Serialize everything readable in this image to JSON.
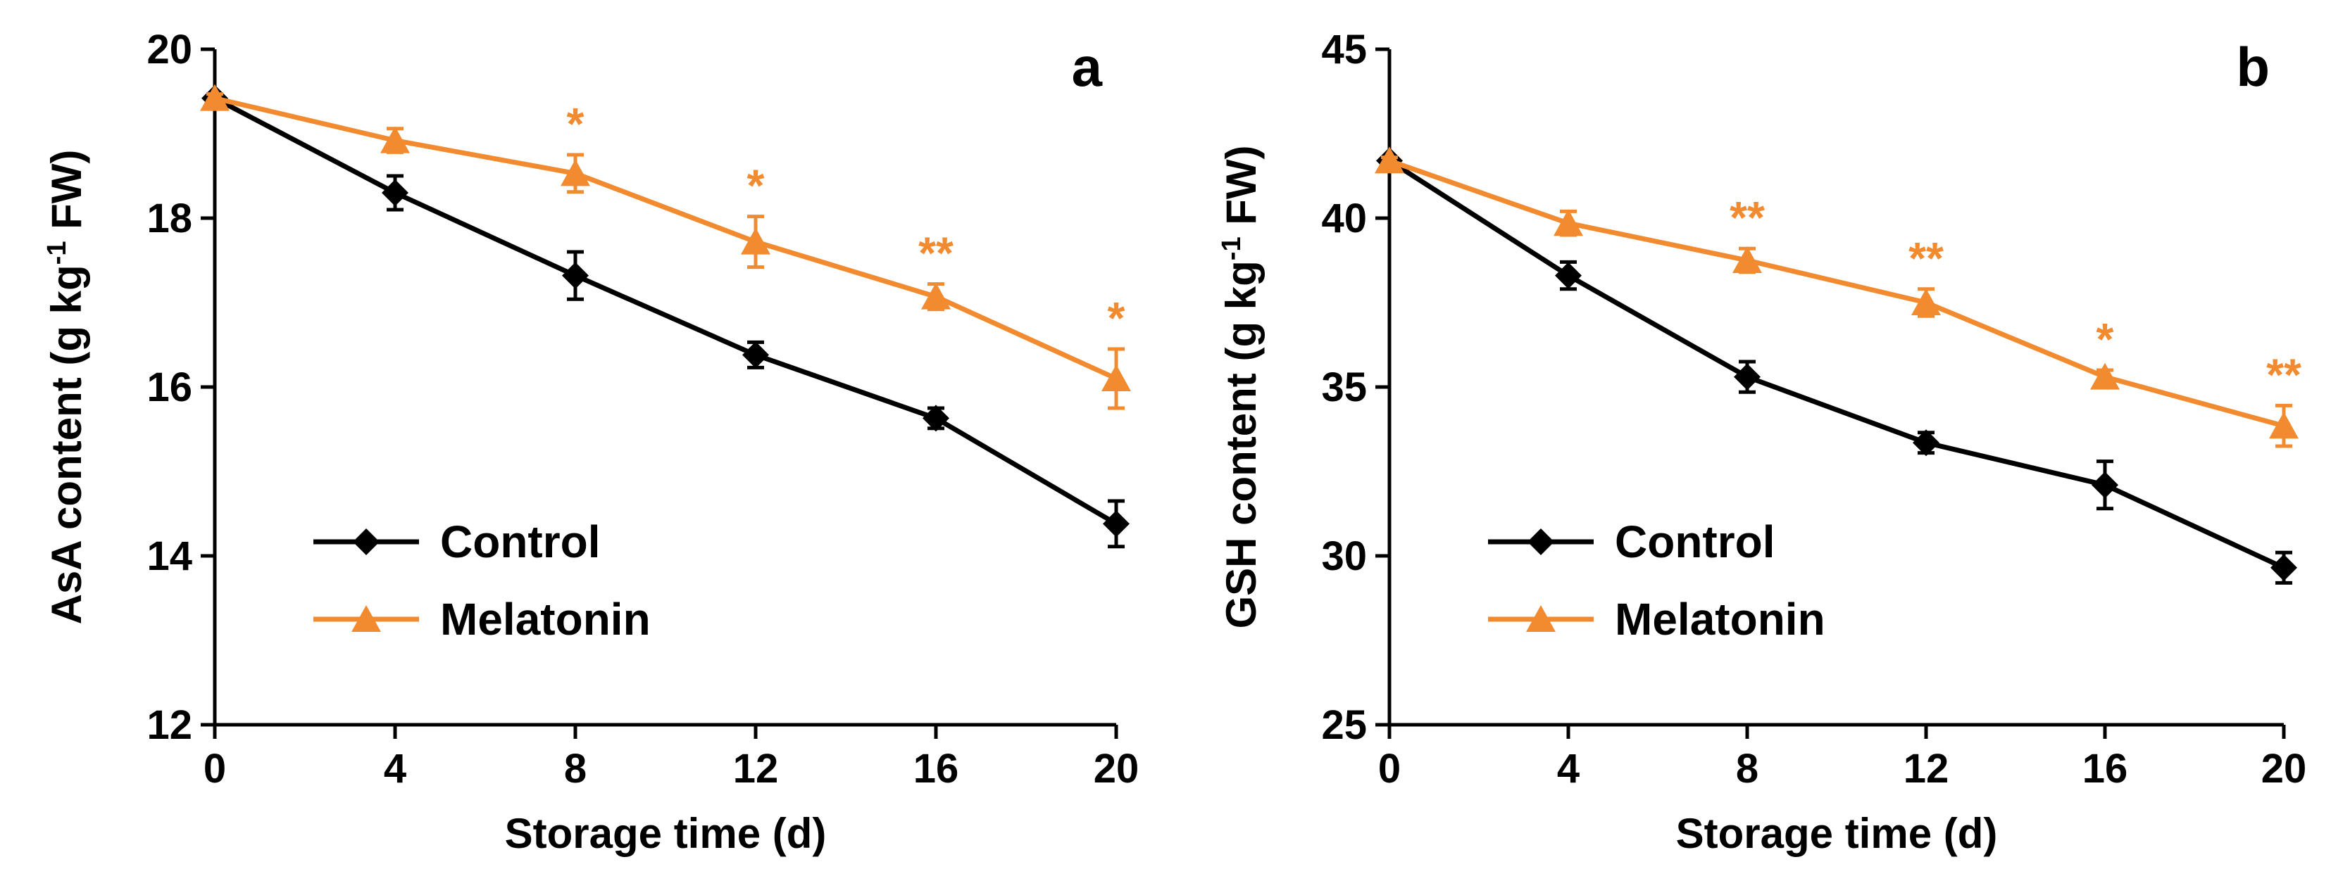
{
  "colors": {
    "control": "#000000",
    "melatonin": "#F28A30",
    "axis": "#000000"
  },
  "chart_data": [
    {
      "panel_label": "a",
      "type": "line",
      "xlabel": "Storage time (d)",
      "ylabel": "AsA content (g kg-1 FW)",
      "ylabel_parts": {
        "main": "AsA content (g kg",
        "sup": "-1",
        "end": " FW)"
      },
      "x": [
        0,
        4,
        8,
        12,
        16,
        20
      ],
      "xlim": [
        0,
        20
      ],
      "ylim": [
        12,
        20
      ],
      "xticks": [
        "0",
        "4",
        "8",
        "12",
        "16",
        "20"
      ],
      "yticks": [
        "12",
        "14",
        "16",
        "18",
        "20"
      ],
      "ytick_values": [
        12,
        14,
        16,
        18,
        20
      ],
      "legend": [
        "Control",
        "Melatonin"
      ],
      "series": [
        {
          "name": "Control",
          "marker": "diamond",
          "values": [
            19.42,
            18.3,
            17.32,
            16.38,
            15.63,
            14.38
          ],
          "errors": [
            0.05,
            0.2,
            0.28,
            0.15,
            0.12,
            0.27
          ]
        },
        {
          "name": "Melatonin",
          "marker": "triangle",
          "values": [
            19.42,
            18.92,
            18.53,
            17.72,
            17.07,
            16.1
          ],
          "errors": [
            0.05,
            0.14,
            0.22,
            0.3,
            0.15,
            0.35
          ]
        }
      ],
      "significance": [
        "",
        "",
        "*",
        "*",
        "**",
        "*"
      ]
    },
    {
      "panel_label": "b",
      "type": "line",
      "xlabel": "Storage time (d)",
      "ylabel": "GSH content (g kg-1 FW)",
      "ylabel_parts": {
        "main": "GSH content (g kg",
        "sup": "-1",
        "end": " FW)"
      },
      "x": [
        0,
        4,
        8,
        12,
        16,
        20
      ],
      "xlim": [
        0,
        20
      ],
      "ylim": [
        25,
        45
      ],
      "xticks": [
        "0",
        "4",
        "8",
        "12",
        "16",
        "20"
      ],
      "yticks": [
        "25",
        "30",
        "35",
        "40",
        "45"
      ],
      "ytick_values": [
        25,
        30,
        35,
        40,
        45
      ],
      "legend": [
        "Control",
        "Melatonin"
      ],
      "series": [
        {
          "name": "Control",
          "marker": "diamond",
          "values": [
            41.7,
            38.3,
            35.3,
            33.35,
            32.1,
            29.65
          ],
          "errors": [
            0.1,
            0.4,
            0.45,
            0.3,
            0.7,
            0.45
          ]
        },
        {
          "name": "Melatonin",
          "marker": "triangle",
          "values": [
            41.7,
            39.85,
            38.75,
            37.5,
            35.3,
            33.85
          ],
          "errors": [
            0.1,
            0.35,
            0.35,
            0.4,
            0.2,
            0.6
          ]
        }
      ],
      "significance": [
        "",
        "",
        "**",
        "**",
        "*",
        "**"
      ]
    }
  ]
}
